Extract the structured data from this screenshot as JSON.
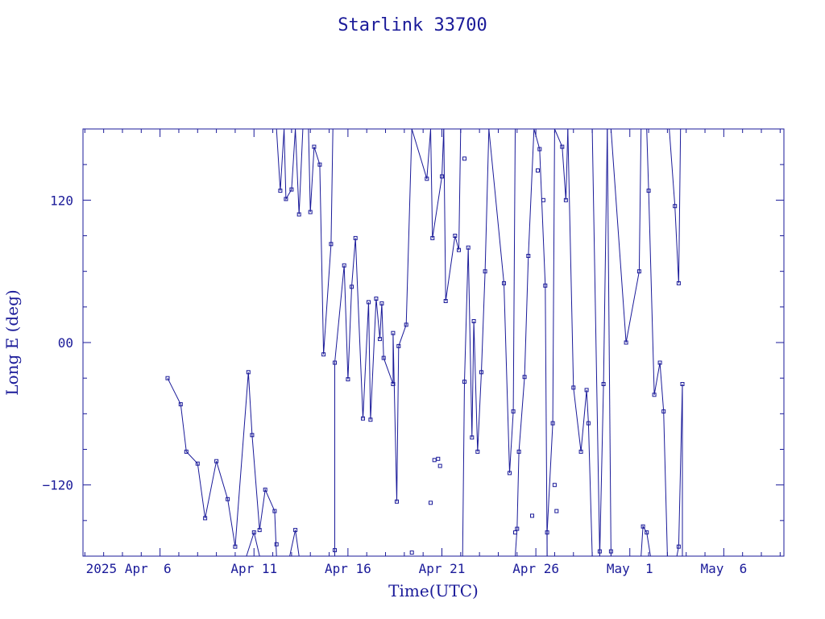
{
  "chart_data": {
    "type": "line",
    "title": "Starlink 33700",
    "xlabel": "Time(UTC)",
    "ylabel": "Long E (deg)",
    "x_ticks": [
      {
        "label": "2025 Apr  6",
        "day": 6
      },
      {
        "label": "Apr 11",
        "day": 11
      },
      {
        "label": "Apr 16",
        "day": 16
      },
      {
        "label": "Apr 21",
        "day": 21
      },
      {
        "label": "Apr 26",
        "day": 26
      },
      {
        "label": "May  1",
        "day": 31
      },
      {
        "label": "May  6",
        "day": 36
      }
    ],
    "y_ticks": [
      {
        "label": "120",
        "value": 120
      },
      {
        "label": "00",
        "value": 0
      },
      {
        "label": "−120",
        "value": -120
      }
    ],
    "xlim": [
      1.9,
      39.2
    ],
    "ylim": [
      -180,
      180
    ],
    "grid": false,
    "series": [
      {
        "values": [
          [
            6.4,
            -30
          ],
          [
            7.1,
            -52
          ],
          [
            7.4,
            -92
          ],
          [
            8.0,
            -102
          ],
          [
            8.4,
            -148
          ],
          [
            9.0,
            -100
          ],
          [
            9.6,
            -132
          ],
          [
            10.0,
            -172
          ],
          [
            10.7,
            -25
          ],
          [
            10.9,
            -78
          ],
          [
            11.3,
            -158
          ],
          [
            11.6,
            -124
          ],
          [
            12.1,
            -142
          ],
          [
            12.2,
            -180
          ]
        ]
      },
      {
        "values": [
          [
            12.2,
            180
          ],
          [
            12.4,
            128
          ],
          [
            12.6,
            180
          ]
        ]
      },
      {
        "values": [
          [
            12.6,
            180
          ],
          [
            12.7,
            121
          ],
          [
            13.0,
            129
          ],
          [
            13.2,
            180
          ]
        ]
      },
      {
        "values": [
          [
            13.2,
            180
          ],
          [
            13.4,
            108
          ],
          [
            13.6,
            180
          ]
        ]
      },
      {
        "values": [
          [
            13.9,
            180
          ],
          [
            14.0,
            110
          ],
          [
            14.2,
            165
          ],
          [
            14.5,
            150
          ],
          [
            14.7,
            -10
          ],
          [
            15.1,
            83
          ],
          [
            15.2,
            180
          ]
        ]
      },
      {
        "values": [
          [
            15.3,
            -180
          ],
          [
            15.3,
            -17
          ],
          [
            15.8,
            65
          ],
          [
            16.0,
            -31
          ],
          [
            16.2,
            47
          ],
          [
            16.4,
            88
          ],
          [
            16.8,
            -64
          ],
          [
            17.1,
            34
          ],
          [
            17.2,
            -65
          ],
          [
            17.5,
            37
          ],
          [
            17.7,
            3
          ],
          [
            17.8,
            33
          ],
          [
            17.9,
            -13
          ],
          [
            18.4,
            -35
          ],
          [
            18.4,
            8
          ],
          [
            18.6,
            -134
          ],
          [
            18.7,
            -3
          ],
          [
            19.1,
            15
          ],
          [
            19.4,
            180
          ]
        ]
      },
      {
        "values": [
          [
            19.4,
            180
          ],
          [
            20.2,
            138
          ],
          [
            20.4,
            180
          ]
        ]
      },
      {
        "values": [
          [
            20.4,
            180
          ],
          [
            20.5,
            88
          ],
          [
            21.0,
            140
          ],
          [
            21.1,
            180
          ]
        ]
      },
      {
        "values": [
          [
            21.1,
            180
          ],
          [
            21.2,
            35
          ],
          [
            21.7,
            90
          ],
          [
            21.9,
            78
          ],
          [
            22.0,
            180
          ]
        ]
      },
      {
        "values": [
          [
            22.1,
            -180
          ],
          [
            22.2,
            -33
          ],
          [
            22.4,
            80
          ],
          [
            22.6,
            -80
          ],
          [
            22.7,
            18
          ],
          [
            22.9,
            -92
          ],
          [
            23.1,
            -25
          ],
          [
            23.3,
            60
          ],
          [
            23.5,
            180
          ]
        ]
      },
      {
        "values": [
          [
            23.5,
            180
          ],
          [
            24.3,
            50
          ],
          [
            24.6,
            -110
          ],
          [
            24.8,
            -58
          ],
          [
            24.9,
            180
          ]
        ]
      },
      {
        "values": [
          [
            24.9,
            -180
          ],
          [
            25.0,
            -157
          ],
          [
            25.1,
            -92
          ],
          [
            25.4,
            -29
          ],
          [
            25.6,
            73
          ],
          [
            25.9,
            180
          ]
        ]
      },
      {
        "values": [
          [
            25.9,
            180
          ],
          [
            26.2,
            163
          ],
          [
            26.5,
            48
          ],
          [
            26.6,
            -180
          ]
        ]
      },
      {
        "values": [
          [
            26.6,
            -180
          ],
          [
            26.6,
            -160
          ],
          [
            26.9,
            -68
          ],
          [
            27.0,
            180
          ]
        ]
      },
      {
        "values": [
          [
            27.0,
            180
          ],
          [
            27.4,
            165
          ],
          [
            27.6,
            120
          ],
          [
            27.7,
            180
          ]
        ]
      },
      {
        "values": [
          [
            27.7,
            180
          ],
          [
            28.0,
            -38
          ],
          [
            28.4,
            -92
          ],
          [
            28.7,
            -40
          ],
          [
            28.8,
            -68
          ],
          [
            29.0,
            -180
          ]
        ]
      },
      {
        "values": [
          [
            29.0,
            180
          ],
          [
            29.4,
            -180
          ]
        ]
      },
      {
        "values": [
          [
            29.4,
            -180
          ],
          [
            29.6,
            -35
          ],
          [
            29.8,
            180
          ]
        ]
      },
      {
        "values": [
          [
            29.8,
            180
          ],
          [
            30.0,
            -180
          ]
        ]
      },
      {
        "values": [
          [
            30.0,
            180
          ],
          [
            30.8,
            0
          ],
          [
            31.5,
            60
          ],
          [
            31.6,
            180
          ]
        ]
      },
      {
        "values": [
          [
            31.6,
            -180
          ],
          [
            31.7,
            -155
          ],
          [
            31.9,
            -160
          ],
          [
            32.1,
            -180
          ]
        ]
      },
      {
        "values": [
          [
            31.9,
            180
          ],
          [
            32.0,
            128
          ],
          [
            32.3,
            -44
          ],
          [
            32.6,
            -17
          ],
          [
            32.8,
            -58
          ],
          [
            33.0,
            -180
          ]
        ]
      },
      {
        "values": [
          [
            33.1,
            180
          ],
          [
            33.4,
            115
          ],
          [
            33.6,
            50
          ],
          [
            33.7,
            180
          ]
        ]
      },
      {
        "values": [
          [
            33.5,
            -180
          ],
          [
            33.6,
            -172
          ],
          [
            33.8,
            -35
          ],
          [
            33.8,
            -180
          ]
        ]
      },
      {
        "values": [
          [
            10.6,
            -180
          ],
          [
            11.0,
            -160
          ],
          [
            11.3,
            -180
          ]
        ]
      },
      {
        "values": [
          [
            12.9,
            -180
          ],
          [
            13.2,
            -158
          ],
          [
            13.4,
            -180
          ]
        ]
      }
    ],
    "markers": [
      [
        6.4,
        -30
      ],
      [
        7.1,
        -52
      ],
      [
        7.4,
        -92
      ],
      [
        8.0,
        -102
      ],
      [
        8.4,
        -148
      ],
      [
        9.0,
        -100
      ],
      [
        9.6,
        -132
      ],
      [
        10.0,
        -172
      ],
      [
        10.7,
        -25
      ],
      [
        10.9,
        -78
      ],
      [
        11.3,
        -158
      ],
      [
        11.6,
        -124
      ],
      [
        12.1,
        -142
      ],
      [
        12.4,
        128
      ],
      [
        12.7,
        121
      ],
      [
        13.0,
        129
      ],
      [
        13.4,
        108
      ],
      [
        14.0,
        110
      ],
      [
        14.2,
        165
      ],
      [
        14.5,
        150
      ],
      [
        14.7,
        -10
      ],
      [
        15.1,
        83
      ],
      [
        15.3,
        -17
      ],
      [
        15.8,
        65
      ],
      [
        16.0,
        -31
      ],
      [
        16.2,
        47
      ],
      [
        16.4,
        88
      ],
      [
        16.8,
        -64
      ],
      [
        17.1,
        34
      ],
      [
        17.2,
        -65
      ],
      [
        17.5,
        37
      ],
      [
        17.7,
        3
      ],
      [
        17.8,
        33
      ],
      [
        17.9,
        -13
      ],
      [
        18.4,
        -35
      ],
      [
        18.4,
        8
      ],
      [
        18.6,
        -134
      ],
      [
        18.7,
        -3
      ],
      [
        19.1,
        15
      ],
      [
        20.2,
        138
      ],
      [
        20.5,
        88
      ],
      [
        21.0,
        140
      ],
      [
        21.2,
        35
      ],
      [
        21.7,
        90
      ],
      [
        21.9,
        78
      ],
      [
        22.2,
        -33
      ],
      [
        22.4,
        80
      ],
      [
        22.6,
        -80
      ],
      [
        22.7,
        18
      ],
      [
        22.9,
        -92
      ],
      [
        23.1,
        -25
      ],
      [
        23.3,
        60
      ],
      [
        24.3,
        50
      ],
      [
        24.6,
        -110
      ],
      [
        24.8,
        -58
      ],
      [
        25.0,
        -157
      ],
      [
        25.1,
        -92
      ],
      [
        25.4,
        -29
      ],
      [
        25.6,
        73
      ],
      [
        26.2,
        163
      ],
      [
        26.5,
        48
      ],
      [
        26.6,
        -160
      ],
      [
        26.9,
        -68
      ],
      [
        27.4,
        165
      ],
      [
        27.6,
        120
      ],
      [
        28.0,
        -38
      ],
      [
        28.4,
        -92
      ],
      [
        28.7,
        -40
      ],
      [
        28.8,
        -68
      ],
      [
        29.6,
        -35
      ],
      [
        30.8,
        0
      ],
      [
        31.5,
        60
      ],
      [
        31.7,
        -155
      ],
      [
        31.9,
        -160
      ],
      [
        32.0,
        128
      ],
      [
        32.3,
        -44
      ],
      [
        32.6,
        -17
      ],
      [
        32.8,
        -58
      ],
      [
        33.4,
        115
      ],
      [
        33.6,
        50
      ],
      [
        33.6,
        -172
      ],
      [
        33.8,
        -35
      ],
      [
        12.2,
        -170
      ],
      [
        13.2,
        -158
      ],
      [
        11.0,
        -160
      ],
      [
        15.3,
        -175
      ],
      [
        19.4,
        -177
      ],
      [
        24.9,
        -160
      ],
      [
        27.1,
        -142
      ],
      [
        27.0,
        -120
      ],
      [
        25.8,
        -146
      ],
      [
        29.4,
        -176
      ],
      [
        30.0,
        -176
      ],
      [
        22.2,
        155
      ],
      [
        20.4,
        -135
      ],
      [
        20.6,
        -99
      ],
      [
        20.8,
        -98
      ],
      [
        20.9,
        -104
      ],
      [
        26.1,
        145
      ],
      [
        26.4,
        120
      ]
    ]
  }
}
